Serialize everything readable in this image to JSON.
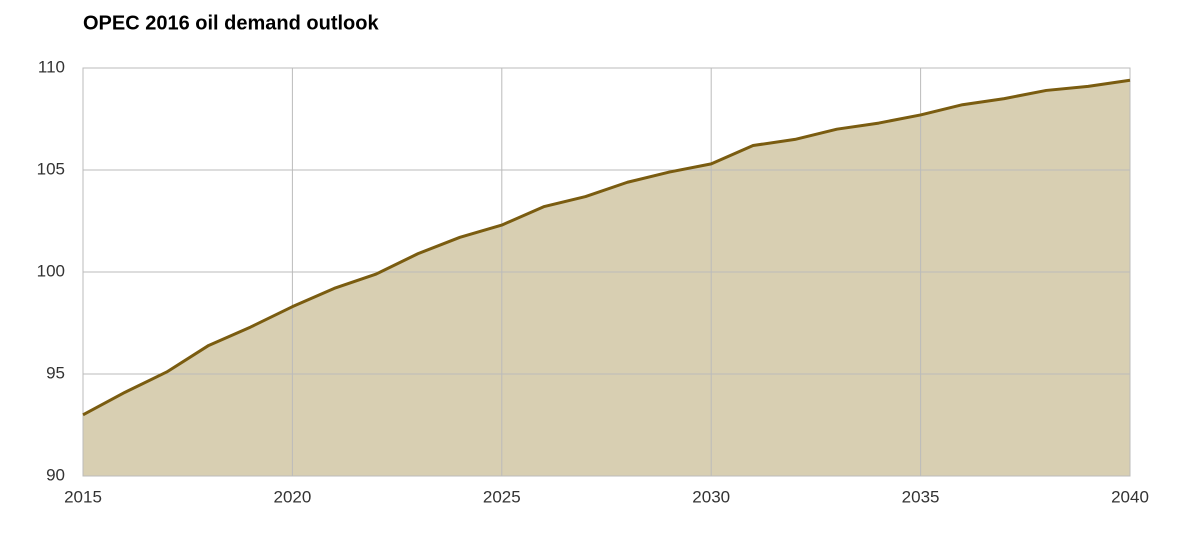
{
  "chart_data": {
    "type": "area",
    "title": "OPEC 2016 oil demand outlook",
    "x": [
      2015,
      2016,
      2017,
      2018,
      2019,
      2020,
      2021,
      2022,
      2023,
      2024,
      2025,
      2026,
      2027,
      2028,
      2029,
      2030,
      2031,
      2032,
      2033,
      2034,
      2035,
      2036,
      2037,
      2038,
      2039,
      2040
    ],
    "values": [
      93.0,
      94.1,
      95.1,
      96.4,
      97.3,
      98.3,
      99.2,
      99.9,
      100.9,
      101.7,
      102.3,
      103.2,
      103.7,
      104.4,
      104.9,
      105.3,
      106.2,
      106.5,
      107.0,
      107.3,
      107.7,
      108.2,
      108.5,
      108.9,
      109.1,
      109.4
    ],
    "color": "#7a5c10",
    "fill": "#d8cfb2",
    "xlim": [
      2015,
      2040
    ],
    "xticks": [
      2015,
      2020,
      2025,
      2030,
      2035,
      2040
    ],
    "ylim": [
      90,
      110
    ],
    "yticks": [
      90,
      95,
      100,
      105,
      110
    ],
    "grid": true
  }
}
